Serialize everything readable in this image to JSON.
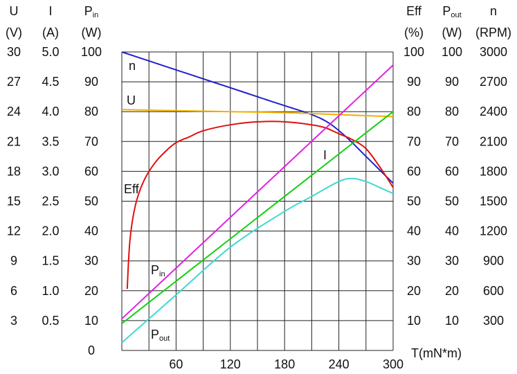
{
  "chart_data": {
    "type": "line",
    "x_axis": {
      "label": "T(mN*m)",
      "min": 0,
      "max": 300,
      "ticks": [
        60,
        120,
        180,
        240,
        300
      ]
    },
    "left_axes": [
      {
        "key": "U",
        "name": "U",
        "sub": "",
        "unit": "(V)",
        "ticks": [
          "30",
          "27",
          "24",
          "21",
          "18",
          "15",
          "12",
          "9",
          "6",
          "3",
          ""
        ]
      },
      {
        "key": "I",
        "name": "I",
        "sub": "",
        "unit": "(A)",
        "ticks": [
          "5.0",
          "4.5",
          "4.0",
          "3.5",
          "3.0",
          "2.5",
          "2.0",
          "1.5",
          "1.0",
          "0.5",
          ""
        ]
      },
      {
        "key": "Pin",
        "name": "P",
        "sub": "in",
        "unit": "(W)",
        "ticks": [
          "100",
          "90",
          "80",
          "70",
          "60",
          "50",
          "40",
          "30",
          "20",
          "10",
          "0"
        ]
      }
    ],
    "right_axes": [
      {
        "key": "Eff",
        "name": "Eff",
        "sub": "",
        "unit": "(%)",
        "ticks": [
          "100",
          "90",
          "80",
          "70",
          "60",
          "50",
          "40",
          "30",
          "20",
          "10",
          ""
        ]
      },
      {
        "key": "Pout",
        "name": "P",
        "sub": "out",
        "unit": "(W)",
        "ticks": [
          "100",
          "90",
          "80",
          "70",
          "60",
          "50",
          "40",
          "30",
          "20",
          "10",
          ""
        ]
      },
      {
        "key": "n",
        "name": "n",
        "sub": "",
        "unit": "(RPM)",
        "ticks": [
          "3000",
          "2700",
          "2400",
          "2100",
          "1800",
          "1500",
          "1200",
          "900",
          "600",
          "300",
          ""
        ]
      }
    ],
    "grid": true,
    "y_percent_range": [
      0,
      100
    ],
    "series": [
      {
        "name": "n",
        "unit": "RPM",
        "color": "#1f22c8",
        "x": [
          0,
          30,
          60,
          90,
          120,
          150,
          180,
          210,
          230,
          250,
          270,
          300
        ],
        "y": [
          3000,
          2910,
          2820,
          2730,
          2640,
          2550,
          2460,
          2370,
          2280,
          2130,
          1950,
          1680
        ]
      },
      {
        "name": "U",
        "unit": "V",
        "color": "#f0b000",
        "x": [
          0,
          60,
          120,
          180,
          240,
          300
        ],
        "y": [
          24.2,
          24.1,
          24.0,
          23.9,
          23.7,
          23.5
        ]
      },
      {
        "name": "Eff",
        "unit": "%",
        "color": "#e01010",
        "x": [
          6,
          9,
          15,
          24,
          36,
          48,
          60,
          75,
          90,
          120,
          150,
          180,
          210,
          225,
          240,
          255,
          270,
          285,
          300
        ],
        "y": [
          20.6,
          37,
          48.6,
          56.6,
          62.6,
          66.6,
          69.6,
          71.6,
          73.6,
          75.6,
          76.6,
          76.6,
          75.6,
          74.6,
          72.6,
          70.6,
          67.6,
          61.6,
          54.6
        ]
      },
      {
        "name": "I",
        "unit": "A",
        "color": "#12d012",
        "x": [
          0,
          300
        ],
        "y": [
          0.45,
          4.0
        ]
      },
      {
        "name": "Pin",
        "display_name": "P",
        "display_sub": "in",
        "unit": "W",
        "color": "#e020e0",
        "x": [
          0,
          300
        ],
        "y": [
          10.6,
          95.6
        ]
      },
      {
        "name": "Pout",
        "display_name": "P",
        "display_sub": "out",
        "unit": "W",
        "color": "#40d8d0",
        "x": [
          0,
          60,
          120,
          180,
          210,
          240,
          255,
          270,
          285,
          300
        ],
        "y": [
          2.6,
          18.6,
          34.6,
          46.6,
          51.6,
          56.6,
          57.6,
          56.6,
          54.6,
          52.6
        ]
      }
    ],
    "curve_labels": [
      {
        "key": "n",
        "text": "n",
        "sub": ""
      },
      {
        "key": "U",
        "text": "U",
        "sub": ""
      },
      {
        "key": "Eff",
        "text": "Eff",
        "sub": ""
      },
      {
        "key": "I",
        "text": "I",
        "sub": ""
      },
      {
        "key": "Pin",
        "text": "P",
        "sub": "in"
      },
      {
        "key": "Pout",
        "text": "P",
        "sub": "out"
      }
    ]
  }
}
